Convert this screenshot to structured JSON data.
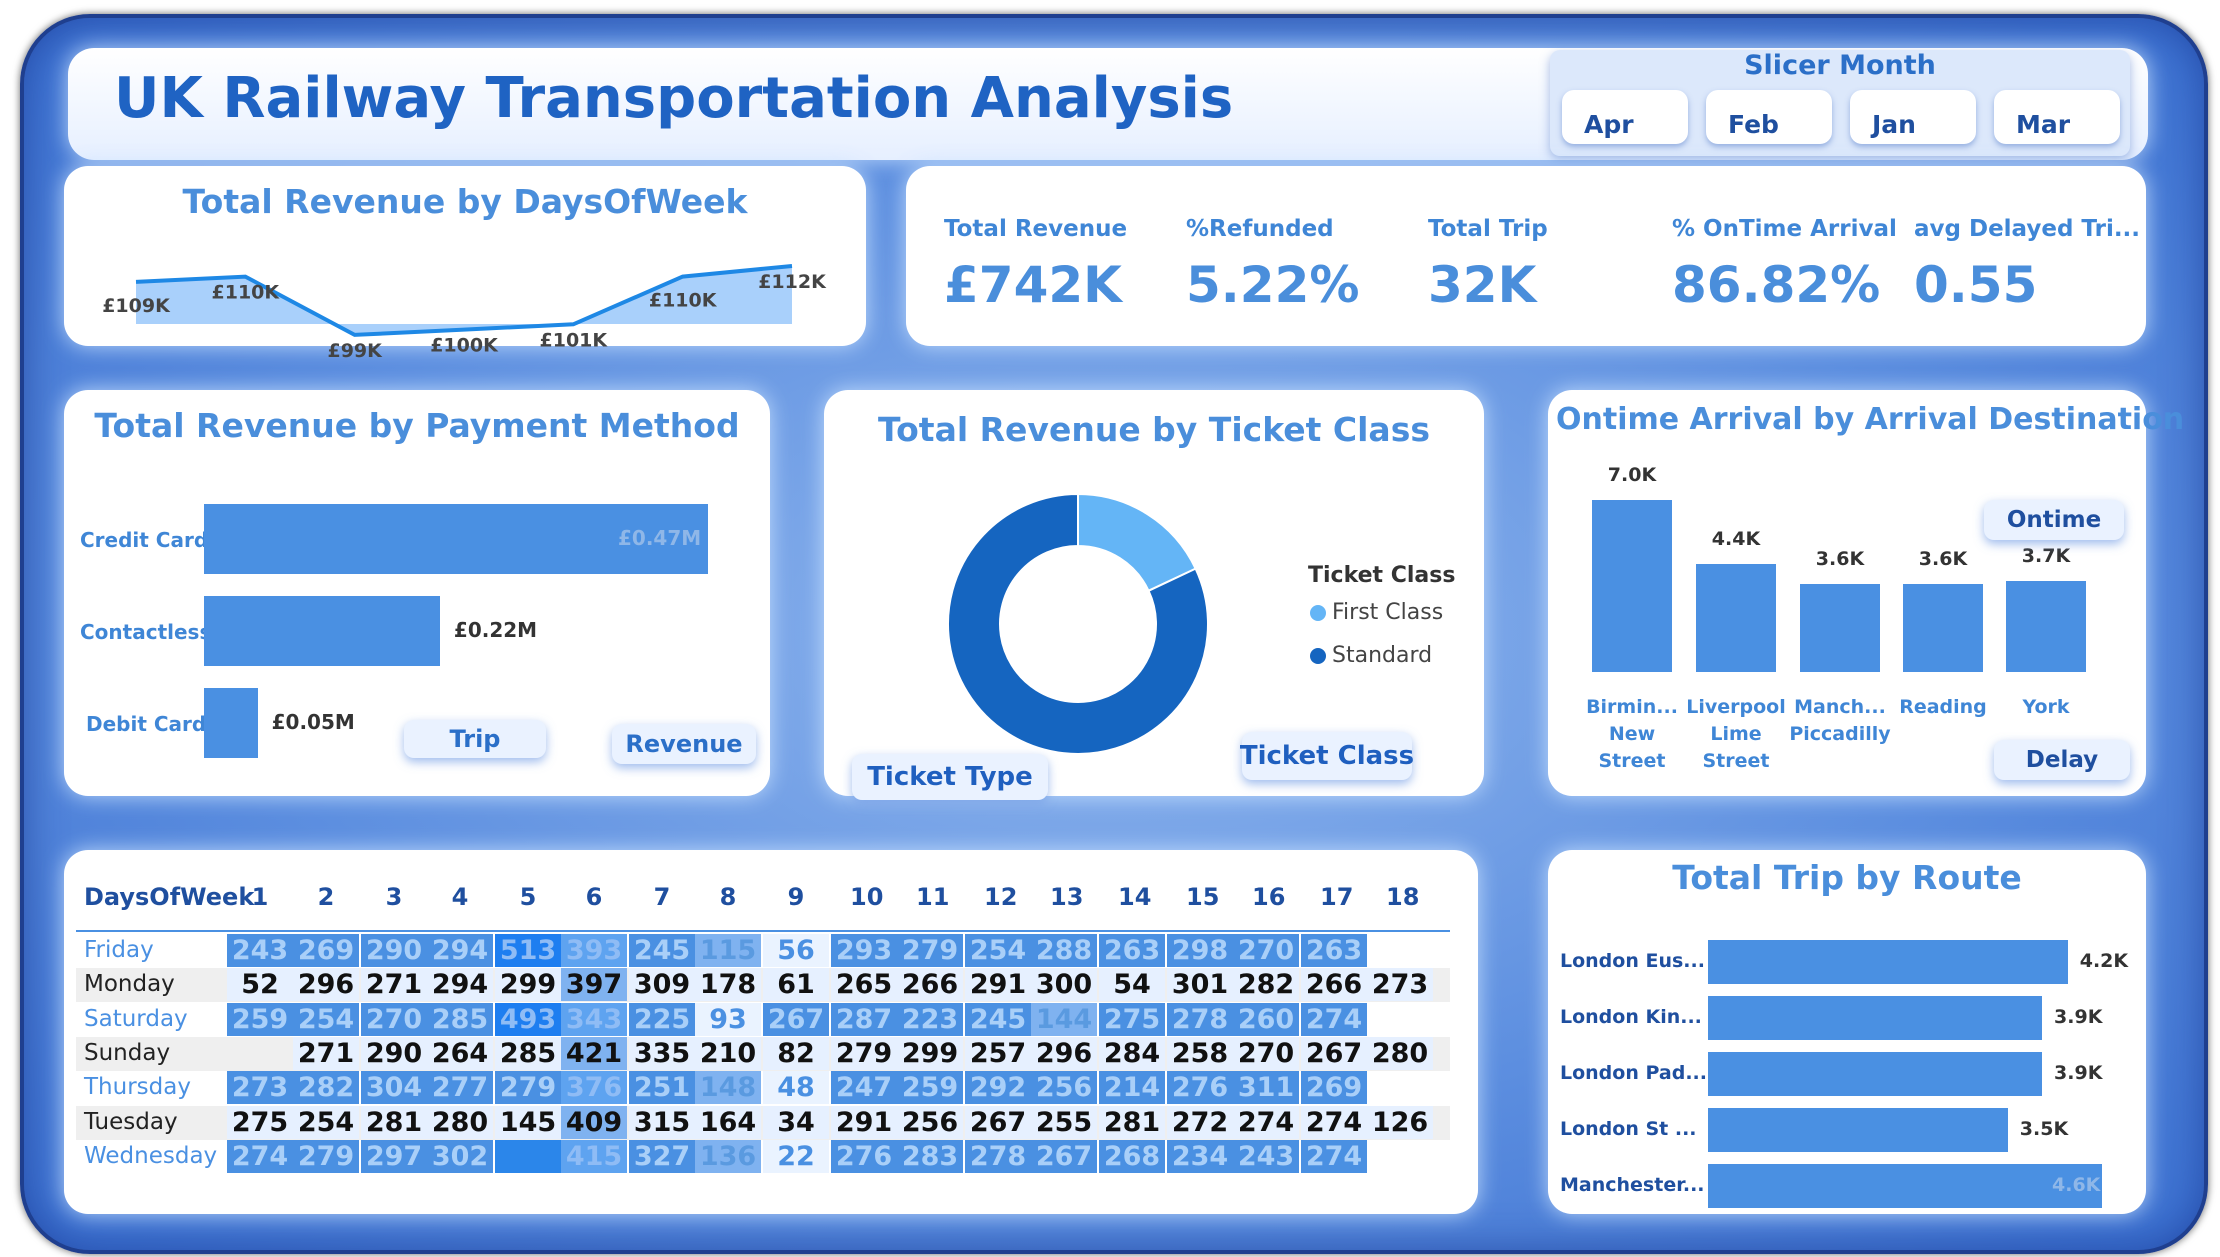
{
  "title": "UK Railway Transportation Analysis",
  "slicer": {
    "title": "Slicer Month",
    "options": [
      "Apr",
      "Feb",
      "Jan",
      "Mar"
    ]
  },
  "colors": {
    "accent": "#4a8edb",
    "bar": "#4a90e2",
    "dark_blue": "#1565c0",
    "light_blue": "#64b5f6",
    "frame": "#3a6fd0"
  },
  "dow_chart": {
    "title": "Total Revenue by DaysOfWeek",
    "labels": [
      "£109K",
      "£110K",
      "£99K",
      "£100K",
      "£101K",
      "£110K",
      "£112K"
    ],
    "chart_data": {
      "type": "area",
      "values": [
        109,
        110,
        99,
        100,
        101,
        110,
        112
      ]
    }
  },
  "kpis": [
    {
      "label": "Total Revenue",
      "value": "£742K"
    },
    {
      "label": "%Refunded",
      "value": "5.22%"
    },
    {
      "label": "Total Trip",
      "value": "32K"
    },
    {
      "label": "% OnTime Arrival",
      "value": "86.82%"
    },
    {
      "label": "avg Delayed Tri...",
      "value": "0.55"
    }
  ],
  "payment": {
    "title": "Total Revenue by Payment Method",
    "buttons": {
      "trip": "Trip",
      "revenue": "Revenue"
    },
    "chart_data": {
      "type": "bar",
      "categories": [
        "Credit Card",
        "Contactless",
        "Debit Card"
      ],
      "values": [
        0.47,
        0.22,
        0.05
      ],
      "labels": [
        "£0.47M",
        "£0.22M",
        "£0.05M"
      ]
    }
  },
  "ticket": {
    "title": "Total Revenue by Ticket Class",
    "legend_title": "Ticket Class",
    "buttons": {
      "type": "Ticket Type",
      "class": "Ticket Class"
    },
    "chart_data": {
      "type": "pie",
      "categories": [
        "First Class",
        "Standard"
      ],
      "values": [
        18,
        82
      ]
    }
  },
  "ontime": {
    "title": "Ontime Arrival by Arrival Destination",
    "buttons": {
      "ontime": "Ontime",
      "delay": "Delay"
    },
    "chart_data": {
      "type": "bar",
      "categories": [
        [
          "Birmin...",
          "New",
          "Street"
        ],
        [
          "Liverpool",
          "Lime",
          "Street"
        ],
        [
          "Manch...",
          "Piccadilly"
        ],
        [
          "Reading"
        ],
        [
          "York"
        ]
      ],
      "values": [
        7.0,
        4.4,
        3.6,
        3.6,
        3.7
      ],
      "labels": [
        "7.0K",
        "4.4K",
        "3.6K",
        "3.6K",
        "3.7K"
      ]
    }
  },
  "heatmap": {
    "row_header": "DaysOfWeek",
    "columns": [
      "1",
      "2",
      "3",
      "4",
      "5",
      "6",
      "7",
      "8",
      "9",
      "10",
      "11",
      "12",
      "13",
      "14",
      "15",
      "16",
      "17",
      "18"
    ],
    "rows": [
      {
        "day": "Friday",
        "values": [
          243,
          269,
          290,
          294,
          513,
          393,
          245,
          115,
          56,
          293,
          279,
          254,
          288,
          263,
          298,
          270,
          263,
          null
        ]
      },
      {
        "day": "Monday",
        "values": [
          52,
          296,
          271,
          294,
          299,
          397,
          309,
          178,
          61,
          265,
          266,
          291,
          300,
          54,
          301,
          282,
          266,
          273
        ]
      },
      {
        "day": "Saturday",
        "values": [
          259,
          254,
          270,
          285,
          493,
          343,
          225,
          93,
          267,
          287,
          223,
          245,
          144,
          275,
          278,
          260,
          274,
          null
        ]
      },
      {
        "day": "Sunday",
        "values": [
          null,
          271,
          290,
          264,
          285,
          421,
          335,
          210,
          82,
          279,
          299,
          257,
          296,
          284,
          258,
          270,
          267,
          280
        ]
      },
      {
        "day": "Thursday",
        "values": [
          273,
          282,
          304,
          277,
          279,
          376,
          251,
          148,
          48,
          247,
          259,
          292,
          256,
          214,
          276,
          311,
          269,
          null
        ]
      },
      {
        "day": "Tuesday",
        "values": [
          275,
          254,
          281,
          280,
          145,
          409,
          315,
          164,
          34,
          291,
          256,
          267,
          255,
          281,
          272,
          274,
          274,
          126
        ]
      },
      {
        "day": "Wednesday",
        "values": [
          274,
          279,
          297,
          302,
          null,
          415,
          327,
          136,
          22,
          276,
          283,
          278,
          267,
          268,
          234,
          243,
          274,
          null
        ]
      }
    ]
  },
  "route": {
    "title": "Total Trip by Route",
    "chart_data": {
      "type": "bar",
      "categories": [
        "London Eus...",
        "London Kin...",
        "London Pad...",
        "London St ...",
        "Manchester..."
      ],
      "values": [
        4.2,
        3.9,
        3.9,
        3.5,
        4.6
      ],
      "labels": [
        "4.2K",
        "3.9K",
        "3.9K",
        "3.5K",
        "4.6K"
      ]
    }
  }
}
